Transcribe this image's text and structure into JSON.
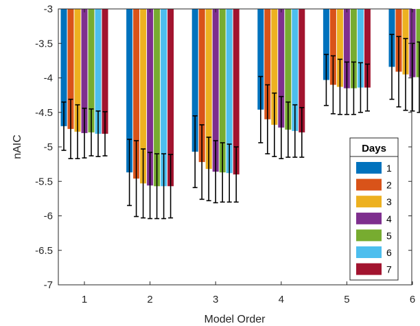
{
  "chart_data": {
    "type": "bar",
    "xlabel": "Model Order",
    "ylabel": "nAIC",
    "ylim": [
      -7,
      -3
    ],
    "yticks": [
      -3,
      -3.5,
      -4,
      -4.5,
      -5,
      -5.5,
      -6,
      -6.5,
      -7
    ],
    "categories": [
      "1",
      "2",
      "3",
      "4",
      "5",
      "6"
    ],
    "legend": {
      "title": "Days",
      "position": "right"
    },
    "series": [
      {
        "name": "1",
        "color": "#0072BD",
        "values": [
          -4.7,
          -5.37,
          -5.07,
          -4.46,
          -4.03,
          -3.84
        ],
        "errors": [
          0.35,
          0.48,
          0.52,
          0.48,
          0.37,
          0.47
        ]
      },
      {
        "name": "2",
        "color": "#D95319",
        "values": [
          -4.74,
          -5.46,
          -5.22,
          -4.6,
          -4.1,
          -3.91
        ],
        "errors": [
          0.43,
          0.55,
          0.54,
          0.5,
          0.42,
          0.51
        ]
      },
      {
        "name": "3",
        "color": "#EDB120",
        "values": [
          -4.78,
          -5.53,
          -5.32,
          -4.68,
          -4.13,
          -3.95
        ],
        "errors": [
          0.39,
          0.5,
          0.46,
          0.46,
          0.4,
          0.52
        ]
      },
      {
        "name": "4",
        "color": "#7E2F8E",
        "values": [
          -4.8,
          -5.56,
          -5.36,
          -4.72,
          -4.15,
          -3.99
        ],
        "errors": [
          0.36,
          0.48,
          0.45,
          0.45,
          0.38,
          0.49
        ]
      },
      {
        "name": "5",
        "color": "#77AC30",
        "values": [
          -4.79,
          -5.57,
          -5.37,
          -4.75,
          -4.15,
          -3.99
        ],
        "errors": [
          0.34,
          0.47,
          0.43,
          0.4,
          0.38,
          0.51
        ]
      },
      {
        "name": "6",
        "color": "#4DBEEE",
        "values": [
          -4.81,
          -5.57,
          -5.38,
          -4.77,
          -4.14,
          -3.97
        ],
        "errors": [
          0.33,
          0.47,
          0.42,
          0.38,
          0.36,
          0.5
        ]
      },
      {
        "name": "7",
        "color": "#A2142F",
        "values": [
          -4.81,
          -5.57,
          -5.4,
          -4.79,
          -4.14,
          -3.96
        ],
        "errors": [
          0.32,
          0.46,
          0.4,
          0.36,
          0.34,
          0.5
        ]
      }
    ]
  }
}
